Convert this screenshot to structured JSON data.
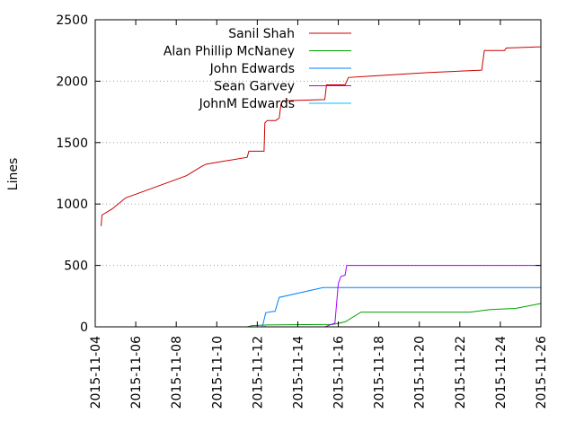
{
  "chart_data": {
    "type": "line",
    "title": "",
    "xlabel": "",
    "ylabel": "Lines",
    "xlim": [
      "2015-11-04",
      "2015-11-26"
    ],
    "ylim": [
      0,
      2500
    ],
    "grid": "y-dotted",
    "legend_position": "top-right",
    "x_ticks": [
      "2015-11-04",
      "2015-11-06",
      "2015-11-08",
      "2015-11-10",
      "2015-11-12",
      "2015-11-14",
      "2015-11-16",
      "2015-11-18",
      "2015-11-20",
      "2015-11-22",
      "2015-11-24",
      "2015-11-26"
    ],
    "y_ticks": [
      0,
      500,
      1000,
      1500,
      2000,
      2500
    ],
    "series": [
      {
        "name": "Sanil Shah",
        "color": "#cc0000",
        "points": [
          [
            "2015-11-04 07:00",
            820
          ],
          [
            "2015-11-04 08:00",
            910
          ],
          [
            "2015-11-04 20:00",
            960
          ],
          [
            "2015-11-05 12:00",
            1050
          ],
          [
            "2015-11-06 12:00",
            1110
          ],
          [
            "2015-11-08 12:00",
            1230
          ],
          [
            "2015-11-09 07:00",
            1310
          ],
          [
            "2015-11-09 12:00",
            1325
          ],
          [
            "2015-11-11 12:00",
            1380
          ],
          [
            "2015-11-11 14:00",
            1430
          ],
          [
            "2015-11-12 08:00",
            1430
          ],
          [
            "2015-11-12 09:00",
            1660
          ],
          [
            "2015-11-12 12:00",
            1680
          ],
          [
            "2015-11-12 22:00",
            1680
          ],
          [
            "2015-11-13 02:00",
            1700
          ],
          [
            "2015-11-13 04:00",
            1810
          ],
          [
            "2015-11-13 06:00",
            1840
          ],
          [
            "2015-11-15 08:00",
            1850
          ],
          [
            "2015-11-15 10:00",
            1970
          ],
          [
            "2015-11-16 08:00",
            1970
          ],
          [
            "2015-11-16 12:00",
            2030
          ],
          [
            "2015-11-17 12:00",
            2040
          ],
          [
            "2015-11-20 12:00",
            2070
          ],
          [
            "2015-11-23 02:00",
            2090
          ],
          [
            "2015-11-23 05:00",
            2250
          ],
          [
            "2015-11-24 05:00",
            2250
          ],
          [
            "2015-11-24 07:00",
            2270
          ],
          [
            "2015-11-26 00:00",
            2280
          ]
        ]
      },
      {
        "name": "Alan Phillip McNaney",
        "color": "#00a000",
        "points": [
          [
            "2015-11-11 12:00",
            0
          ],
          [
            "2015-11-11 18:00",
            10
          ],
          [
            "2015-11-12 12:00",
            15
          ],
          [
            "2015-11-15 18:00",
            20
          ],
          [
            "2015-11-16 08:00",
            40
          ],
          [
            "2015-11-17 03:00",
            120
          ],
          [
            "2015-11-22 12:00",
            120
          ],
          [
            "2015-11-23 12:00",
            140
          ],
          [
            "2015-11-24 18:00",
            150
          ],
          [
            "2015-11-26 00:00",
            190
          ]
        ]
      },
      {
        "name": "John Edwards",
        "color": "#0080ff",
        "points": [
          [
            "2015-11-12 06:00",
            0
          ],
          [
            "2015-11-12 10:00",
            115
          ],
          [
            "2015-11-12 18:00",
            125
          ],
          [
            "2015-11-12 21:00",
            125
          ],
          [
            "2015-11-13 02:00",
            240
          ],
          [
            "2015-11-15 06:00",
            320
          ],
          [
            "2015-11-26 00:00",
            320
          ]
        ]
      },
      {
        "name": "Sean Garvey",
        "color": "#aa00ff",
        "points": [
          [
            "2015-11-15 08:00",
            0
          ],
          [
            "2015-11-15 20:00",
            30
          ],
          [
            "2015-11-16 00:00",
            350
          ],
          [
            "2015-11-16 03:00",
            410
          ],
          [
            "2015-11-16 08:00",
            420
          ],
          [
            "2015-11-16 10:00",
            500
          ],
          [
            "2015-11-26 00:00",
            500
          ]
        ]
      },
      {
        "name": "JohnM Edwards",
        "color": "#00c0ff",
        "points": [
          [
            "2015-11-12 08:00",
            0
          ],
          [
            "2015-11-12 10:00",
            5
          ]
        ]
      }
    ]
  }
}
